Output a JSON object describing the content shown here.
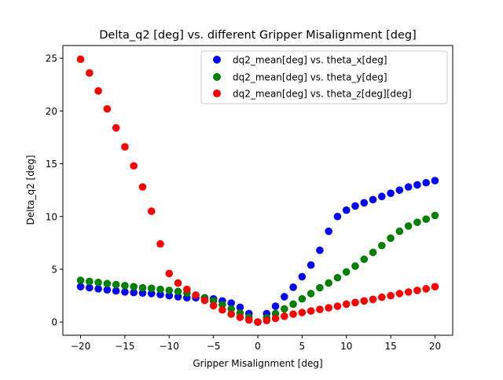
{
  "chart_data": {
    "type": "scatter",
    "title": "Delta_q2 [deg] vs. different Gripper Misalignment [deg]",
    "xlabel": "Gripper Misalignment [deg]",
    "ylabel": "Delta_q2 [deg]",
    "xlim": [
      -22,
      22
    ],
    "ylim": [
      -1.25,
      26.2
    ],
    "xticks": [
      -20,
      -15,
      -10,
      -5,
      0,
      5,
      10,
      15,
      20
    ],
    "yticks": [
      0,
      5,
      10,
      15,
      20,
      25
    ],
    "grid": false,
    "legend_position": "upper-right",
    "x": [
      -20,
      -19,
      -18,
      -17,
      -16,
      -15,
      -14,
      -13,
      -12,
      -11,
      -10,
      -9,
      -8,
      -7,
      -6,
      -5,
      -4,
      -3,
      -2,
      -1,
      0,
      1,
      2,
      3,
      4,
      5,
      6,
      7,
      8,
      9,
      10,
      11,
      12,
      13,
      14,
      15,
      16,
      17,
      18,
      19,
      20
    ],
    "series": [
      {
        "name": "dq2_mean[deg] vs. theta_x[deg]",
        "color": "#0000ff",
        "values": [
          3.35,
          3.25,
          3.15,
          3.05,
          2.95,
          2.85,
          2.8,
          2.75,
          2.7,
          2.6,
          2.5,
          2.4,
          2.3,
          2.3,
          2.3,
          2.2,
          2.0,
          1.8,
          1.4,
          0.8,
          0.0,
          0.8,
          1.5,
          2.4,
          3.3,
          4.3,
          5.4,
          6.8,
          8.6,
          10.0,
          10.6,
          11.0,
          11.3,
          11.6,
          11.9,
          12.2,
          12.5,
          12.8,
          13.0,
          13.2,
          13.4
        ]
      },
      {
        "name": "dq2_mean[deg] vs. theta_y[deg]",
        "color": "#008000",
        "values": [
          3.95,
          3.85,
          3.75,
          3.65,
          3.55,
          3.45,
          3.35,
          3.25,
          3.2,
          3.1,
          3.0,
          2.9,
          2.75,
          2.55,
          2.3,
          2.0,
          1.65,
          1.25,
          0.85,
          0.45,
          0.0,
          0.4,
          0.8,
          1.25,
          1.7,
          2.2,
          2.7,
          3.25,
          3.7,
          4.2,
          4.75,
          5.3,
          5.95,
          6.6,
          7.25,
          7.95,
          8.6,
          9.1,
          9.45,
          9.75,
          10.1
        ]
      },
      {
        "name": "dq2_mean[deg] vs. theta_z[deg][deg]",
        "color": "#ff0000",
        "values": [
          24.9,
          23.6,
          21.9,
          20.2,
          18.4,
          16.6,
          14.8,
          12.8,
          10.5,
          7.4,
          4.6,
          3.7,
          3.1,
          2.55,
          2.05,
          1.55,
          1.15,
          0.75,
          0.45,
          0.2,
          0.0,
          0.15,
          0.35,
          0.55,
          0.75,
          0.9,
          1.05,
          1.2,
          1.35,
          1.5,
          1.7,
          1.85,
          2.0,
          2.15,
          2.35,
          2.5,
          2.7,
          2.85,
          3.0,
          3.15,
          3.35
        ]
      }
    ]
  }
}
